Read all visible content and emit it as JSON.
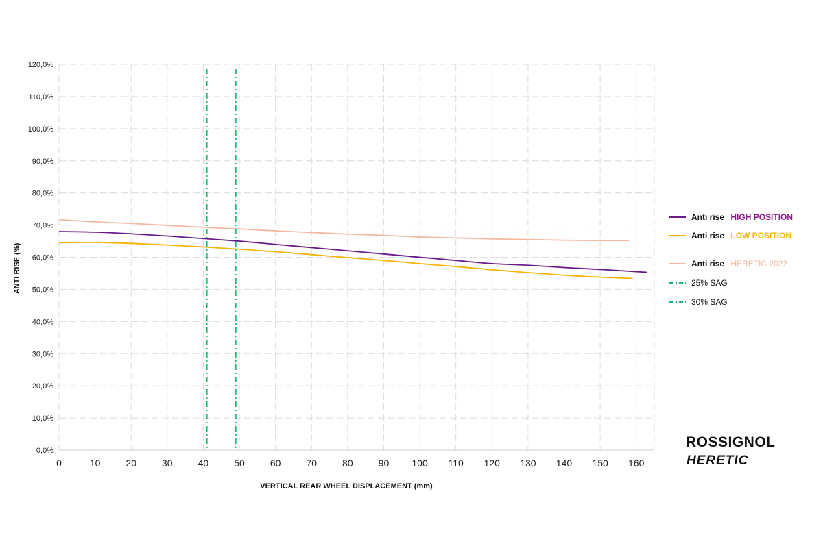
{
  "chart_data": {
    "type": "line",
    "xlabel": "VERTICAL REAR WHEEL DISPLACEMENT (mm)",
    "ylabel": "ANTI RISE (%)",
    "xlim": [
      0,
      165
    ],
    "ylim": [
      0,
      120
    ],
    "x_ticks": [
      "0",
      "10",
      "20",
      "30",
      "40",
      "50",
      "60",
      "70",
      "80",
      "90",
      "100",
      "110",
      "120",
      "130",
      "140",
      "150",
      "160"
    ],
    "y_ticks": [
      "0,0%",
      "10,0%",
      "20,0%",
      "30,0%",
      "40,0%",
      "50,0%",
      "60,0%",
      "70,0%",
      "80,0%",
      "90,0%",
      "100,0%",
      "110,0%",
      "120,0%"
    ],
    "grid": true,
    "legend_position": "right",
    "series": [
      {
        "name_bold": "Anti rise",
        "name_tag": "HIGH POSITION",
        "color": "#6a1b8a",
        "tag_color": "#8e1b8b",
        "x": [
          0,
          10,
          20,
          30,
          40,
          50,
          60,
          70,
          80,
          90,
          100,
          110,
          120,
          130,
          140,
          150,
          163
        ],
        "y": [
          68.0,
          67.8,
          67.3,
          66.6,
          65.8,
          65.0,
          64.0,
          63.0,
          62.0,
          61.0,
          60.0,
          59.0,
          58.0,
          57.5,
          56.8,
          56.2,
          55.3
        ]
      },
      {
        "name_bold": "Anti rise",
        "name_tag": "LOW POSITION",
        "color": "#f5b400",
        "tag_color": "#f5b400",
        "x": [
          0,
          10,
          20,
          30,
          40,
          50,
          60,
          70,
          80,
          90,
          100,
          110,
          120,
          130,
          140,
          150,
          159
        ],
        "y": [
          64.5,
          64.6,
          64.3,
          63.8,
          63.2,
          62.5,
          61.7,
          60.8,
          59.9,
          59.0,
          58.0,
          57.1,
          56.1,
          55.2,
          54.4,
          53.8,
          53.4
        ]
      },
      {
        "name_bold": "Anti rise",
        "name_tag": "HERETIC 2022",
        "color": "#f2b8a0",
        "tag_color": "#f2b8a0",
        "x": [
          0,
          10,
          20,
          30,
          40,
          50,
          60,
          70,
          80,
          90,
          100,
          110,
          120,
          130,
          140,
          150,
          158
        ],
        "y": [
          71.7,
          71.0,
          70.5,
          69.9,
          69.3,
          68.8,
          68.2,
          67.7,
          67.2,
          66.8,
          66.3,
          66.0,
          65.7,
          65.5,
          65.3,
          65.2,
          65.2
        ]
      }
    ],
    "reference_lines": [
      {
        "name": "25% SAG",
        "x": 41,
        "color": "#22b573"
      },
      {
        "name": "30% SAG",
        "x": 49,
        "color": "#22b573"
      }
    ]
  },
  "brand": {
    "line1": "ROSSIGNOL",
    "line2": "HERETIC"
  }
}
